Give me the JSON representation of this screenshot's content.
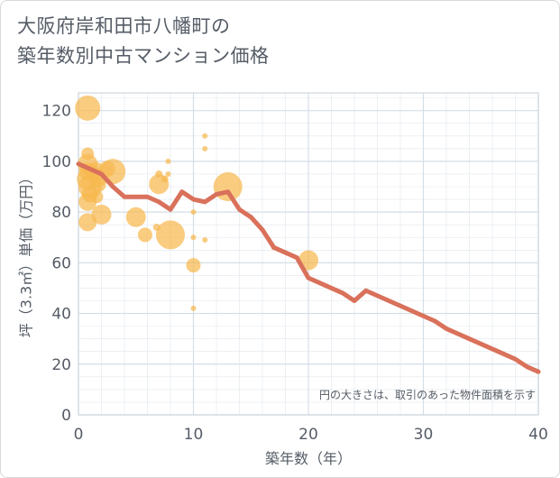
{
  "title_line1": "大阪府岸和田市八幡町の",
  "title_line2": "築年数別中古マンション価格",
  "chart_data": {
    "type": "scatter",
    "title": "大阪府岸和田市八幡町の築年数別中古マンション価格",
    "xlabel": "築年数（年）",
    "ylabel": "坪（3.3㎡）単価（万円）",
    "xlim": [
      0,
      40
    ],
    "ylim": [
      0,
      127
    ],
    "xticks": [
      "0",
      "10",
      "20",
      "30",
      "40"
    ],
    "yticks": [
      "0",
      "20",
      "40",
      "60",
      "80",
      "100",
      "120"
    ],
    "grid": true,
    "note": "円の大きさは、取引のあった物件面積を示す",
    "colors": {
      "bubble": "#f6b84f",
      "line": "#d9715b",
      "grid": "#d5dee6",
      "frame": "#c6cfd8"
    },
    "series": [
      {
        "kind": "bubble",
        "points": [
          {
            "x": 0.8,
            "y": 121,
            "r": 14
          },
          {
            "x": 0.8,
            "y": 103,
            "r": 7
          },
          {
            "x": 0.8,
            "y": 99,
            "r": 11
          },
          {
            "x": 0.8,
            "y": 96,
            "r": 10
          },
          {
            "x": 0.8,
            "y": 93,
            "r": 12
          },
          {
            "x": 1.0,
            "y": 90,
            "r": 13
          },
          {
            "x": 1.0,
            "y": 87,
            "r": 9
          },
          {
            "x": 0.8,
            "y": 84,
            "r": 10
          },
          {
            "x": 0.8,
            "y": 76,
            "r": 10
          },
          {
            "x": 1.3,
            "y": 95,
            "r": 9
          },
          {
            "x": 1.5,
            "y": 97,
            "r": 8
          },
          {
            "x": 1.7,
            "y": 91,
            "r": 9
          },
          {
            "x": 1.6,
            "y": 86,
            "r": 7
          },
          {
            "x": 1.8,
            "y": 93,
            "r": 8
          },
          {
            "x": 2.0,
            "y": 79,
            "r": 11
          },
          {
            "x": 2.5,
            "y": 97,
            "r": 9
          },
          {
            "x": 3.0,
            "y": 96,
            "r": 14
          },
          {
            "x": 5.0,
            "y": 78,
            "r": 11
          },
          {
            "x": 5.8,
            "y": 71,
            "r": 8
          },
          {
            "x": 6.8,
            "y": 74,
            "r": 4
          },
          {
            "x": 7.0,
            "y": 95,
            "r": 4
          },
          {
            "x": 7.0,
            "y": 91,
            "r": 11
          },
          {
            "x": 7.5,
            "y": 93,
            "r": 4
          },
          {
            "x": 7.8,
            "y": 100,
            "r": 3
          },
          {
            "x": 7.8,
            "y": 95,
            "r": 3
          },
          {
            "x": 8.0,
            "y": 71,
            "r": 16
          },
          {
            "x": 10.0,
            "y": 80,
            "r": 3
          },
          {
            "x": 10.0,
            "y": 70,
            "r": 3
          },
          {
            "x": 10.0,
            "y": 42,
            "r": 3
          },
          {
            "x": 10.0,
            "y": 59,
            "r": 8
          },
          {
            "x": 11.0,
            "y": 110,
            "r": 3
          },
          {
            "x": 11.0,
            "y": 105,
            "r": 3
          },
          {
            "x": 11.0,
            "y": 69,
            "r": 3
          },
          {
            "x": 13.0,
            "y": 90,
            "r": 16
          },
          {
            "x": 17.0,
            "y": 66,
            "r": 3
          },
          {
            "x": 20.0,
            "y": 61,
            "r": 11
          }
        ]
      },
      {
        "kind": "line",
        "x": [
          0,
          1,
          2,
          3,
          4,
          5,
          6,
          7,
          8,
          9,
          10,
          11,
          12,
          13,
          14,
          15,
          16,
          17,
          18,
          19,
          20,
          21,
          22,
          23,
          24,
          25,
          26,
          27,
          28,
          29,
          30,
          31,
          32,
          33,
          34,
          35,
          36,
          37,
          38,
          39,
          40
        ],
        "y": [
          99,
          97,
          95,
          90,
          86,
          86,
          86,
          84,
          81,
          88,
          85,
          84,
          87,
          88,
          81,
          78,
          73,
          66,
          64,
          62,
          54,
          52,
          50,
          48,
          45,
          49,
          47,
          45,
          43,
          41,
          39,
          37,
          34,
          32,
          30,
          28,
          26,
          24,
          22,
          19,
          17
        ]
      }
    ]
  }
}
